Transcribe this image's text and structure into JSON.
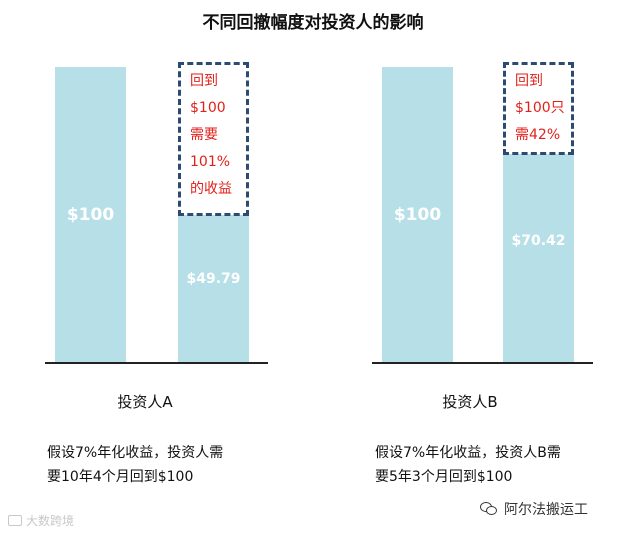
{
  "title": "不同回撤幅度对投资人的影响",
  "chart_data": [
    {
      "type": "bar",
      "categories": [
        "",
        ""
      ],
      "values": [
        100,
        49.79
      ],
      "value_labels": [
        "$100",
        "$49.79"
      ],
      "recovery_target": 100,
      "annotation_lines": [
        "回到",
        "$100",
        "需要",
        "101%",
        "的收益"
      ],
      "investor_label": "投资人A",
      "caption_lines": [
        "假设7%年化收益，投资人需",
        "要10年4个月回到$100"
      ]
    },
    {
      "type": "bar",
      "categories": [
        "",
        ""
      ],
      "values": [
        100,
        70.42
      ],
      "value_labels": [
        "$100",
        "$70.42"
      ],
      "recovery_target": 100,
      "annotation_lines": [
        "回到",
        "$100只",
        "需42%"
      ],
      "investor_label": "投资人B",
      "caption_lines": [
        "假设7%年化收益，投资人B需",
        "要5年3个月回到$100"
      ]
    }
  ],
  "colors": {
    "bar": "#b7dfe8",
    "dashed_border": "#2c4a72",
    "annotation": "#e2211c"
  },
  "watermarks": {
    "left_text": "大数跨境",
    "right_text": "阿尔法搬运工",
    "left_icon": "camera-icon",
    "right_icon": "wechat-icon"
  }
}
